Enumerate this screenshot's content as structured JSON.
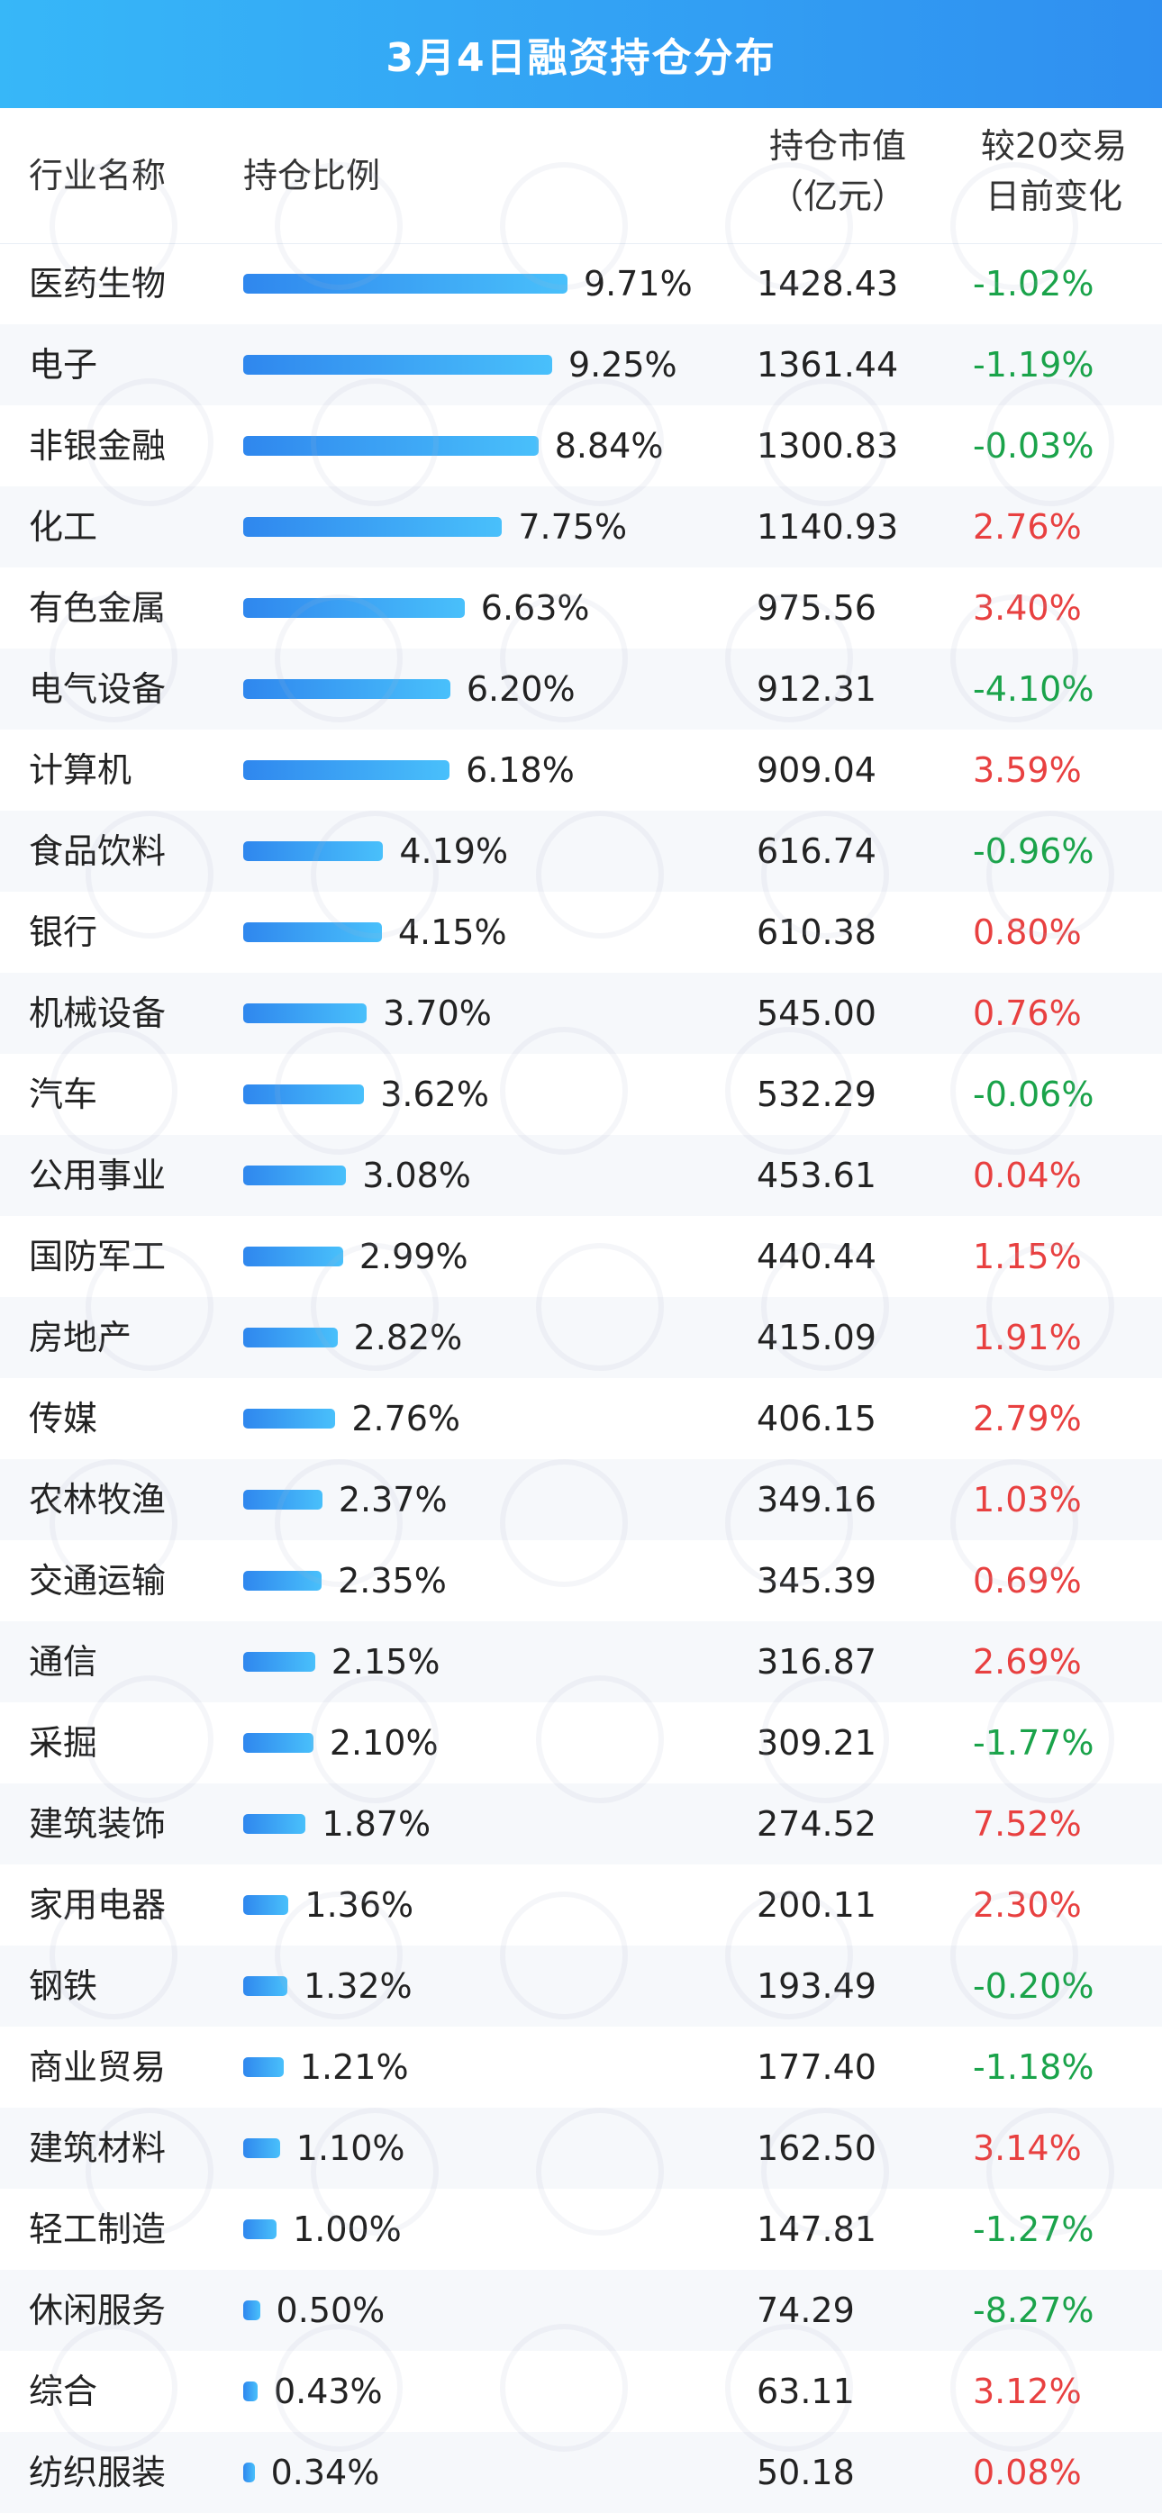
{
  "title": "3月4日融资持仓分布",
  "header": {
    "col_name": "行业名称",
    "col_ratio": "持仓比例",
    "col_value_line1": "持仓市值",
    "col_value_line2": "（亿元）",
    "col_change_line1": "较20交易",
    "col_change_line2": "日前变化"
  },
  "colors": {
    "title_bg": "#2f8ff0",
    "bar": "#3aa0f5",
    "positive": "#e84040",
    "negative": "#1aa34a"
  },
  "chart_data": {
    "type": "bar",
    "title": "3月4日融资持仓分布",
    "xlabel": "",
    "ylabel": "持仓比例",
    "categories": [
      "医药生物",
      "电子",
      "非银金融",
      "化工",
      "有色金属",
      "电气设备",
      "计算机",
      "食品饮料",
      "银行",
      "机械设备",
      "汽车",
      "公用事业",
      "国防军工",
      "房地产",
      "传媒",
      "农林牧渔",
      "交通运输",
      "通信",
      "采掘",
      "建筑装饰",
      "家用电器",
      "钢铁",
      "商业贸易",
      "建筑材料",
      "轻工制造",
      "休闲服务",
      "综合",
      "纺织服装"
    ],
    "ratio_labels": [
      "9.71%",
      "9.25%",
      "8.84%",
      "7.75%",
      "6.63%",
      "6.20%",
      "6.18%",
      "4.19%",
      "4.15%",
      "3.70%",
      "3.62%",
      "3.08%",
      "2.99%",
      "2.82%",
      "2.76%",
      "2.37%",
      "2.35%",
      "2.15%",
      "2.10%",
      "1.87%",
      "1.36%",
      "1.32%",
      "1.21%",
      "1.10%",
      "1.00%",
      "0.50%",
      "0.43%",
      "0.34%"
    ],
    "values": [
      9.71,
      9.25,
      8.84,
      7.75,
      6.63,
      6.2,
      6.18,
      4.19,
      4.15,
      3.7,
      3.62,
      3.08,
      2.99,
      2.82,
      2.76,
      2.37,
      2.35,
      2.15,
      2.1,
      1.87,
      1.36,
      1.32,
      1.21,
      1.1,
      1.0,
      0.5,
      0.43,
      0.34
    ],
    "market_value_labels": [
      "1428.43",
      "1361.44",
      "1300.83",
      "1140.93",
      "975.56",
      "912.31",
      "909.04",
      "616.74",
      "610.38",
      "545.00",
      "532.29",
      "453.61",
      "440.44",
      "415.09",
      "406.15",
      "349.16",
      "345.39",
      "316.87",
      "309.21",
      "274.52",
      "200.11",
      "193.49",
      "177.40",
      "162.50",
      "147.81",
      "74.29",
      "63.11",
      "50.18"
    ],
    "change_labels": [
      "-1.02%",
      "-1.19%",
      "-0.03%",
      "2.76%",
      "3.40%",
      "-4.10%",
      "3.59%",
      "-0.96%",
      "0.80%",
      "0.76%",
      "-0.06%",
      "0.04%",
      "1.15%",
      "1.91%",
      "2.79%",
      "1.03%",
      "0.69%",
      "2.69%",
      "-1.77%",
      "7.52%",
      "2.30%",
      "-0.20%",
      "-1.18%",
      "3.14%",
      "-1.27%",
      "-8.27%",
      "3.12%",
      "0.08%"
    ],
    "change_values": [
      -1.02,
      -1.19,
      -0.03,
      2.76,
      3.4,
      -4.1,
      3.59,
      -0.96,
      0.8,
      0.76,
      -0.06,
      0.04,
      1.15,
      1.91,
      2.79,
      1.03,
      0.69,
      2.69,
      -1.77,
      7.52,
      2.3,
      -0.2,
      -1.18,
      3.14,
      -1.27,
      -8.27,
      3.12,
      0.08
    ],
    "xlim": [
      0,
      9.71
    ]
  }
}
